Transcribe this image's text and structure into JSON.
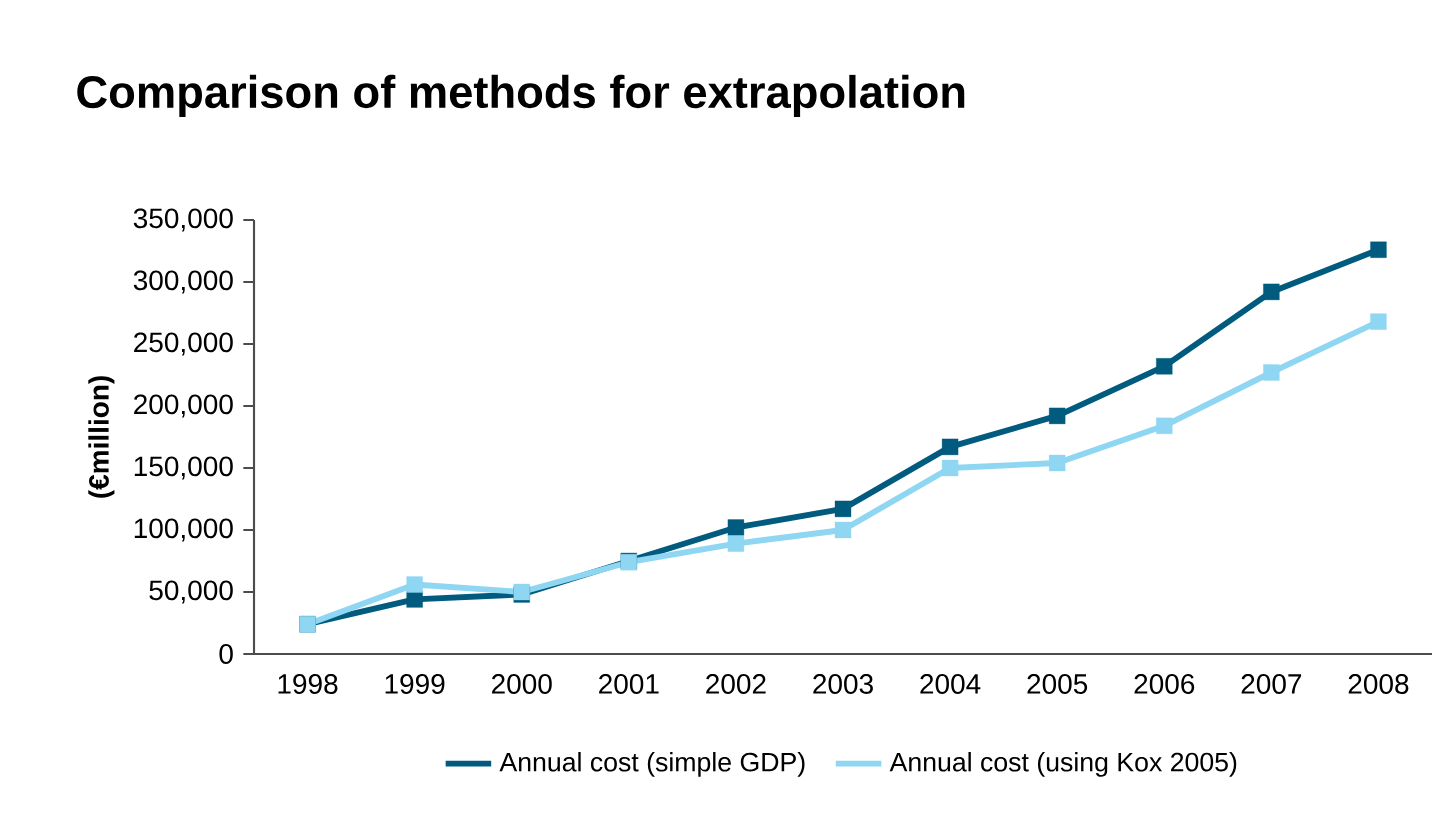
{
  "chart_data": {
    "type": "line",
    "title": "Comparison of methods for extrapolation",
    "ylabel": "(€million)",
    "categories": [
      "1998",
      "1999",
      "2000",
      "2001",
      "2002",
      "2003",
      "2004",
      "2005",
      "2006",
      "2007",
      "2008"
    ],
    "series": [
      {
        "name": "Annual cost (simple GDP)",
        "color": "#005b7f",
        "values": [
          24000,
          44000,
          48000,
          75000,
          102000,
          117000,
          167000,
          192000,
          232000,
          292000,
          326000
        ]
      },
      {
        "name": "Annual cost (using Kox 2005)",
        "color": "#8fd6f2",
        "values": [
          24000,
          56000,
          50000,
          74000,
          89000,
          100000,
          150000,
          154000,
          184000,
          227000,
          268000
        ]
      }
    ],
    "ylim": [
      0,
      350000
    ],
    "yticks": [
      {
        "value": 0,
        "label": "0"
      },
      {
        "value": 50000,
        "label": "50,000"
      },
      {
        "value": 100000,
        "label": "100,000"
      },
      {
        "value": 150000,
        "label": "150,000"
      },
      {
        "value": 200000,
        "label": "200,000"
      },
      {
        "value": 250000,
        "label": "250,000"
      },
      {
        "value": 300000,
        "label": "300,000"
      },
      {
        "value": 350000,
        "label": "350,000"
      }
    ],
    "grid": false,
    "legend": "bottom",
    "marker": "square"
  }
}
